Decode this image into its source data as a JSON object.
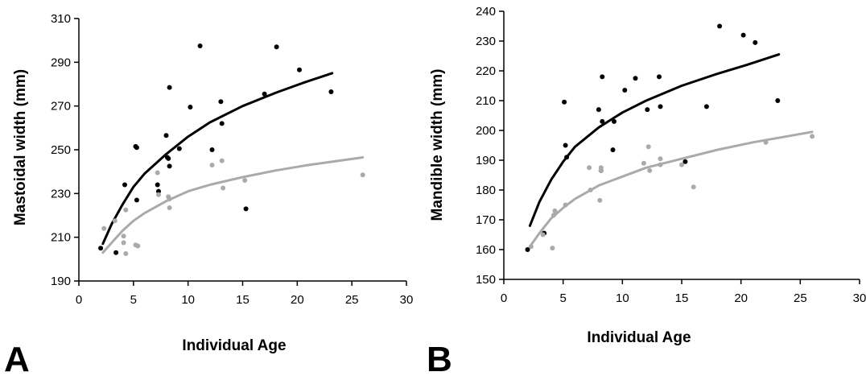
{
  "chart_data": [
    {
      "type": "scatter",
      "panel_label": "A",
      "xlabel": "Individual Age",
      "ylabel": "Mastoidal width (mm)",
      "xlim": [
        0,
        30
      ],
      "ylim": [
        190,
        310
      ],
      "xticks": [
        0,
        5,
        10,
        15,
        20,
        25,
        30
      ],
      "yticks": [
        190,
        210,
        230,
        250,
        270,
        290,
        310
      ],
      "grid": false,
      "series": [
        {
          "color": "#000000",
          "points": [
            [
              2,
              205
            ],
            [
              3.4,
              203
            ],
            [
              4.2,
              234
            ],
            [
              5.2,
              251.5
            ],
            [
              5.3,
              251
            ],
            [
              5.3,
              227
            ],
            [
              7.2,
              234
            ],
            [
              7.3,
              231
            ],
            [
              8,
              256.5
            ],
            [
              8.1,
              246.5
            ],
            [
              8.2,
              246
            ],
            [
              8.3,
              242.5
            ],
            [
              8.3,
              278.5
            ],
            [
              9.2,
              250.5
            ],
            [
              10.2,
              269.5
            ],
            [
              11.1,
              297.5
            ],
            [
              12.2,
              250
            ],
            [
              13,
              272
            ],
            [
              13.1,
              262
            ],
            [
              15.3,
              223
            ],
            [
              17,
              275.5
            ],
            [
              18.1,
              297
            ],
            [
              20.2,
              286.5
            ],
            [
              23.1,
              276.5
            ]
          ],
          "trend": [
            [
              2.2,
              207
            ],
            [
              3,
              216
            ],
            [
              4,
              225
            ],
            [
              5,
              233
            ],
            [
              6,
              239
            ],
            [
              8,
              248
            ],
            [
              10,
              256
            ],
            [
              12,
              262.5
            ],
            [
              15,
              270
            ],
            [
              18,
              276
            ],
            [
              20.5,
              280.5
            ],
            [
              23.2,
              285
            ]
          ]
        },
        {
          "color": "#aaaaaa",
          "points": [
            [
              2.3,
              214
            ],
            [
              3.3,
              217.5
            ],
            [
              4.1,
              210.5
            ],
            [
              4.1,
              207.5
            ],
            [
              4.3,
              202.5
            ],
            [
              4.3,
              222.5
            ],
            [
              5.2,
              206.5
            ],
            [
              5.4,
              206
            ],
            [
              7.2,
              239.5
            ],
            [
              7.3,
              229.5
            ],
            [
              8.2,
              228.5
            ],
            [
              8.3,
              223.5
            ],
            [
              8.3,
              227.5
            ],
            [
              12.2,
              243
            ],
            [
              13.1,
              245
            ],
            [
              13.2,
              232.5
            ],
            [
              15.2,
              236
            ],
            [
              26,
              238.5
            ]
          ],
          "trend": [
            [
              2.2,
              203
            ],
            [
              3,
              207.5
            ],
            [
              4,
              213
            ],
            [
              5,
              217.5
            ],
            [
              6,
              221
            ],
            [
              8,
              226.5
            ],
            [
              10,
              231
            ],
            [
              12,
              234
            ],
            [
              15,
              237.5
            ],
            [
              18,
              240.5
            ],
            [
              21,
              243
            ],
            [
              26,
              246.5
            ]
          ]
        }
      ]
    },
    {
      "type": "scatter",
      "panel_label": "B",
      "xlabel": "Individual Age",
      "ylabel": "Mandible width (mm)",
      "xlim": [
        0,
        30
      ],
      "ylim": [
        150,
        240
      ],
      "xticks": [
        0,
        5,
        10,
        15,
        20,
        25,
        30
      ],
      "yticks": [
        150,
        160,
        170,
        180,
        190,
        200,
        210,
        220,
        230,
        240
      ],
      "grid": false,
      "series": [
        {
          "color": "#000000",
          "points": [
            [
              2,
              160
            ],
            [
              3.4,
              165.5
            ],
            [
              5.1,
              209.5
            ],
            [
              5.2,
              195
            ],
            [
              5.3,
              191
            ],
            [
              8,
              207
            ],
            [
              8.2,
              186.5
            ],
            [
              8.3,
              203
            ],
            [
              8.3,
              218
            ],
            [
              9.2,
              193.5
            ],
            [
              9.3,
              203
            ],
            [
              10.2,
              213.5
            ],
            [
              11.1,
              217.5
            ],
            [
              12.1,
              207
            ],
            [
              13.1,
              218
            ],
            [
              13.2,
              208
            ],
            [
              15.3,
              189.5
            ],
            [
              17.1,
              208
            ],
            [
              18.2,
              235
            ],
            [
              20.2,
              232
            ],
            [
              21.2,
              229.5
            ],
            [
              23.1,
              210
            ]
          ],
          "trend": [
            [
              2.2,
              168
            ],
            [
              3,
              176
            ],
            [
              4,
              183.5
            ],
            [
              5,
              189.5
            ],
            [
              6,
              194.5
            ],
            [
              8,
              201
            ],
            [
              10,
              206
            ],
            [
              12,
              210
            ],
            [
              15,
              215
            ],
            [
              18,
              219
            ],
            [
              20.5,
              222
            ],
            [
              23.2,
              225.5
            ]
          ]
        },
        {
          "color": "#aaaaaa",
          "points": [
            [
              2.3,
              161
            ],
            [
              3.3,
              165
            ],
            [
              4.1,
              160.5
            ],
            [
              4.2,
              171.5
            ],
            [
              4.3,
              173
            ],
            [
              5.2,
              175
            ],
            [
              7.2,
              187.5
            ],
            [
              7.3,
              180
            ],
            [
              8.1,
              176.5
            ],
            [
              8.2,
              187.5
            ],
            [
              8.2,
              186.5
            ],
            [
              11.8,
              189
            ],
            [
              12.2,
              194.5
            ],
            [
              12.3,
              186.5
            ],
            [
              13.2,
              190.5
            ],
            [
              13.2,
              188.5
            ],
            [
              15,
              188.5
            ],
            [
              16,
              181
            ],
            [
              22.1,
              196
            ],
            [
              26,
              198
            ]
          ],
          "trend": [
            [
              2.2,
              161
            ],
            [
              3,
              165.5
            ],
            [
              4,
              170.5
            ],
            [
              5,
              174
            ],
            [
              6,
              177
            ],
            [
              8,
              181.5
            ],
            [
              10,
              184.5
            ],
            [
              12,
              187.5
            ],
            [
              15,
              190.5
            ],
            [
              18,
              193.5
            ],
            [
              21,
              196
            ],
            [
              26,
              199.5
            ]
          ]
        }
      ]
    }
  ]
}
